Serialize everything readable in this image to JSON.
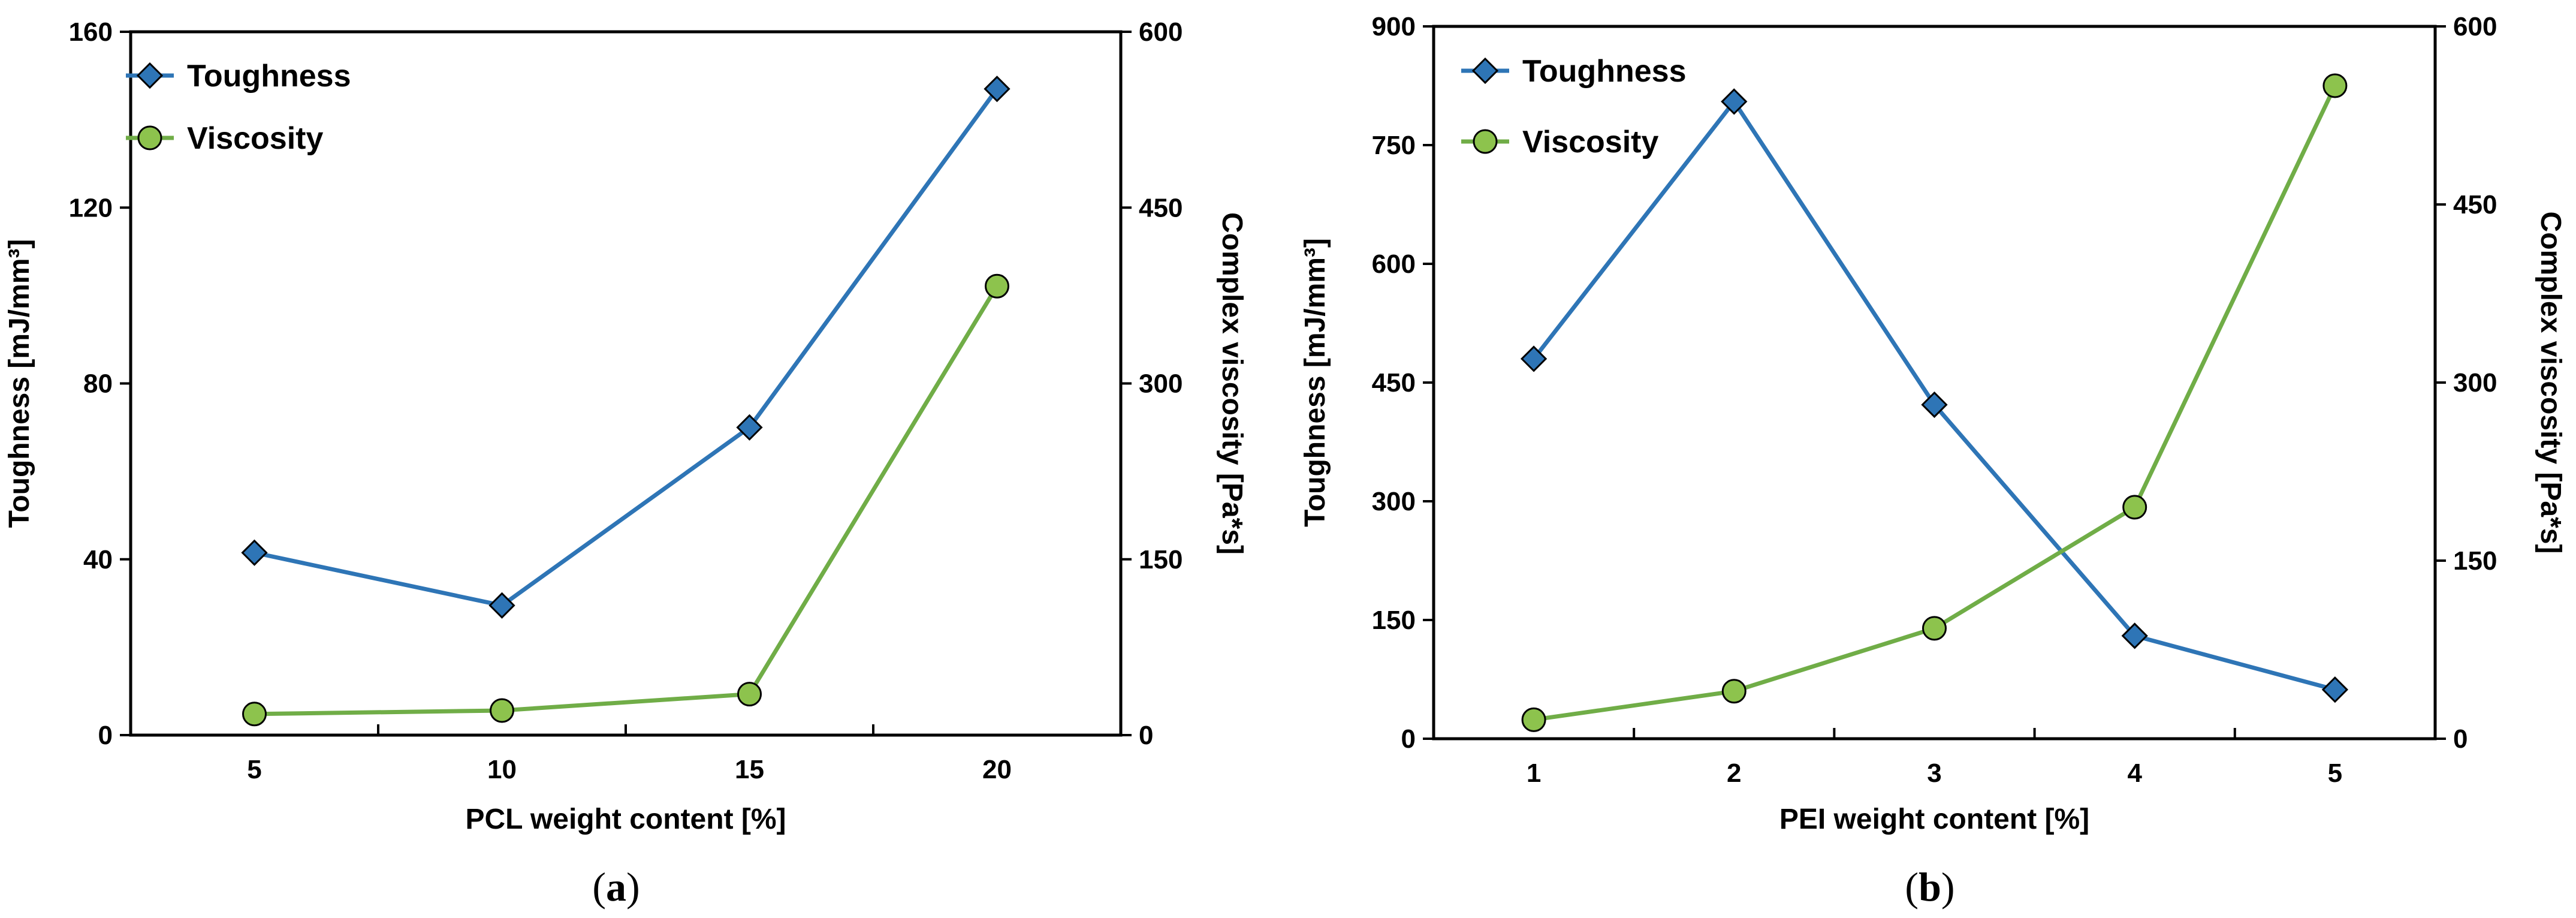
{
  "chart_data": [
    {
      "type": "line",
      "panel_label": "a",
      "x": [
        5,
        10,
        15,
        20
      ],
      "xlabel": "PCL weight content [%]",
      "ylabel": "Toughness [mJ/mm³]",
      "y2label": "Complex viscosity [Pa*s]",
      "ylim": [
        0,
        160
      ],
      "yticks": [
        0,
        40,
        80,
        120,
        160
      ],
      "y2lim": [
        0,
        600
      ],
      "y2ticks": [
        0,
        150,
        300,
        450,
        600
      ],
      "xlim": [
        2.5,
        22.5
      ],
      "xticks": [
        5,
        10,
        15,
        20
      ],
      "xminor": [
        7.5,
        12.5,
        17.5
      ],
      "legend_position": "top-left",
      "grid": false,
      "series": [
        {
          "name": "Toughness",
          "axis": "left",
          "marker": "diamond",
          "color": "#2E75B6",
          "fill": "#2E75B6",
          "values": [
            41.5,
            29.5,
            70,
            147
          ]
        },
        {
          "name": "Viscosity",
          "axis": "right",
          "marker": "circle",
          "color": "#70AD47",
          "fill": "#8DC34D",
          "values": [
            18,
            21,
            35,
            383
          ]
        }
      ]
    },
    {
      "type": "line",
      "panel_label": "b",
      "x": [
        1,
        2,
        3,
        4,
        5
      ],
      "xlabel": "PEI weight content [%]",
      "ylabel": "Toughness [mJ/mm³]",
      "y2label": "Complex viscosity [Pa*s]",
      "ylim": [
        0,
        900
      ],
      "yticks": [
        0,
        150,
        300,
        450,
        600,
        750,
        900
      ],
      "y2lim": [
        0,
        600
      ],
      "y2ticks": [
        0,
        150,
        300,
        450,
        600
      ],
      "xlim": [
        0.5,
        5.5
      ],
      "xticks": [
        1,
        2,
        3,
        4,
        5
      ],
      "xminor": [
        1.5,
        2.5,
        3.5,
        4.5
      ],
      "legend_position": "top-left",
      "grid": false,
      "series": [
        {
          "name": "Toughness",
          "axis": "left",
          "marker": "diamond",
          "color": "#2E75B6",
          "fill": "#2E75B6",
          "values": [
            480,
            805,
            422,
            130,
            62
          ]
        },
        {
          "name": "Viscosity",
          "axis": "right",
          "marker": "circle",
          "color": "#70AD47",
          "fill": "#8DC34D",
          "values": [
            16,
            40,
            93,
            195,
            550
          ]
        }
      ]
    }
  ],
  "captions": [
    "(a)",
    "(b)"
  ]
}
